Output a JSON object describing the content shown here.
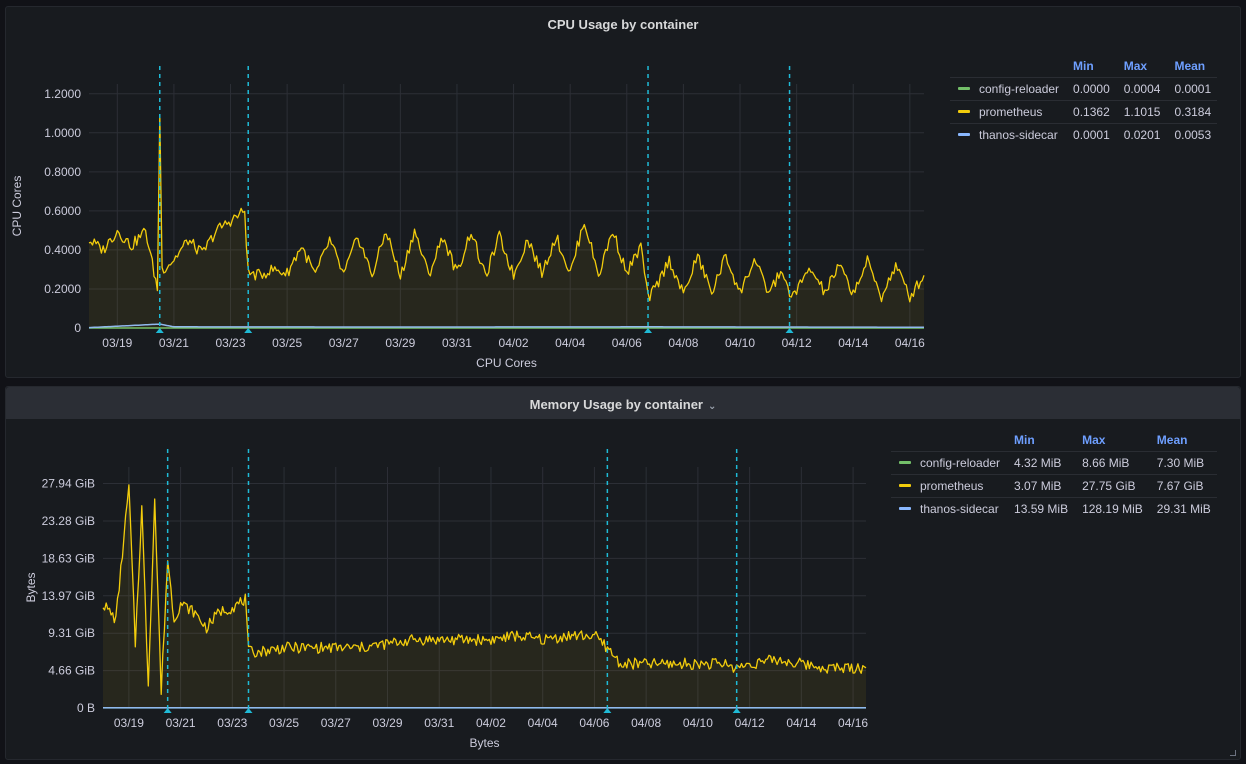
{
  "colors": {
    "config-reloader": "#73bf69",
    "prometheus": "#f2cc0c",
    "thanos-sidecar": "#8ab8ff",
    "annotation": "#1fbad6"
  },
  "cpu": {
    "title": "CPU Usage by container",
    "legend_headers": [
      "Min",
      "Max",
      "Mean"
    ],
    "legend_rows": [
      {
        "name": "config-reloader",
        "min": "0.0000",
        "max": "0.0004",
        "mean": "0.0001"
      },
      {
        "name": "prometheus",
        "min": "0.1362",
        "max": "1.1015",
        "mean": "0.3184"
      },
      {
        "name": "thanos-sidecar",
        "min": "0.0001",
        "max": "0.0201",
        "mean": "0.0053"
      }
    ]
  },
  "memory": {
    "title": "Memory Usage by container",
    "collapse_icon": "chevron-down-icon",
    "legend_headers": [
      "Min",
      "Max",
      "Mean"
    ],
    "legend_rows": [
      {
        "name": "config-reloader",
        "min": "4.32 MiB",
        "max": "8.66 MiB",
        "mean": "7.30 MiB"
      },
      {
        "name": "prometheus",
        "min": "3.07 MiB",
        "max": "27.75 GiB",
        "mean": "7.67 GiB"
      },
      {
        "name": "thanos-sidecar",
        "min": "13.59 MiB",
        "max": "128.19 MiB",
        "mean": "29.31 MiB"
      }
    ]
  },
  "chart_data": [
    {
      "type": "line",
      "title": "CPU Usage by container",
      "xlabel": "CPU Cores",
      "ylabel": "CPU Cores",
      "x_start": "03/18",
      "x_end": "04/16",
      "x_ticks": [
        "03/19",
        "03/21",
        "03/23",
        "03/25",
        "03/27",
        "03/29",
        "03/31",
        "04/02",
        "04/04",
        "04/06",
        "04/08",
        "04/10",
        "04/12",
        "04/14",
        "04/16"
      ],
      "y_ticks": [
        "0",
        "0.2000",
        "0.4000",
        "0.6000",
        "0.8000",
        "1.0000",
        "1.2000"
      ],
      "y_tick_values": [
        0,
        0.2,
        0.4,
        0.6,
        0.8,
        1.0,
        1.2
      ],
      "ylim": [
        0,
        1.25
      ],
      "grid": true,
      "legend": "right",
      "annotations": [
        "03/20 12:00",
        "03/23 15:00",
        "04/06 18:00",
        "04/11 18:00"
      ],
      "series": [
        {
          "name": "prometheus",
          "x": [
            "03/18 00:00",
            "03/18 12:00",
            "03/19 00:00",
            "03/19 12:00",
            "03/20 00:00",
            "03/20 10:00",
            "03/20 12:00",
            "03/20 14:00",
            "03/21 00:00",
            "03/21 12:00",
            "03/22 00:00",
            "03/22 12:00",
            "03/23 00:00",
            "03/23 12:00",
            "03/23 15:00",
            "03/24 00:00",
            "03/24 12:00",
            "03/25 00:00",
            "03/25 12:00",
            "03/26 00:00",
            "03/26 12:00",
            "03/27 00:00",
            "03/27 12:00",
            "03/28 00:00",
            "03/28 12:00",
            "03/29 00:00",
            "03/29 12:00",
            "03/30 00:00",
            "03/30 12:00",
            "03/31 00:00",
            "03/31 12:00",
            "04/01 00:00",
            "04/01 12:00",
            "04/02 00:00",
            "04/02 12:00",
            "04/03 00:00",
            "04/03 12:00",
            "04/04 00:00",
            "04/04 12:00",
            "04/05 00:00",
            "04/05 12:00",
            "04/06 00:00",
            "04/06 12:00",
            "04/06 18:00",
            "04/07 00:00",
            "04/07 12:00",
            "04/08 00:00",
            "04/08 12:00",
            "04/09 00:00",
            "04/09 12:00",
            "04/10 00:00",
            "04/10 12:00",
            "04/11 00:00",
            "04/11 12:00",
            "04/11 18:00",
            "04/12 00:00",
            "04/12 12:00",
            "04/13 00:00",
            "04/13 12:00",
            "04/14 00:00",
            "04/14 12:00",
            "04/15 00:00",
            "04/15 12:00",
            "04/16 00:00",
            "04/16 12:00"
          ],
          "y": [
            0.45,
            0.4,
            0.5,
            0.42,
            0.5,
            0.2,
            1.1,
            0.3,
            0.35,
            0.45,
            0.38,
            0.5,
            0.55,
            0.6,
            0.28,
            0.27,
            0.3,
            0.28,
            0.42,
            0.27,
            0.45,
            0.27,
            0.47,
            0.27,
            0.5,
            0.26,
            0.5,
            0.27,
            0.47,
            0.28,
            0.5,
            0.26,
            0.47,
            0.27,
            0.46,
            0.28,
            0.47,
            0.28,
            0.55,
            0.27,
            0.5,
            0.28,
            0.42,
            0.15,
            0.2,
            0.35,
            0.17,
            0.37,
            0.18,
            0.37,
            0.18,
            0.35,
            0.18,
            0.3,
            0.15,
            0.2,
            0.3,
            0.18,
            0.32,
            0.18,
            0.34,
            0.16,
            0.32,
            0.16,
            0.27
          ]
        },
        {
          "name": "thanos-sidecar",
          "x": [
            "03/18 00:00",
            "03/20 12:00",
            "03/21 00:00",
            "03/29 00:00",
            "04/06 18:00",
            "04/11 18:00",
            "04/16 12:00"
          ],
          "y": [
            0.002,
            0.02,
            0.006,
            0.005,
            0.006,
            0.005,
            0.004
          ]
        },
        {
          "name": "config-reloader",
          "x": [
            "03/18 00:00",
            "04/16 12:00"
          ],
          "y": [
            0.0001,
            0.0001
          ]
        }
      ]
    },
    {
      "type": "line",
      "title": "Memory Usage by container",
      "xlabel": "Bytes",
      "ylabel": "Bytes",
      "x_start": "03/18",
      "x_end": "04/16",
      "x_ticks": [
        "03/19",
        "03/21",
        "03/23",
        "03/25",
        "03/27",
        "03/29",
        "03/31",
        "04/02",
        "04/04",
        "04/06",
        "04/08",
        "04/10",
        "04/12",
        "04/14",
        "04/16"
      ],
      "y_ticks": [
        "0 B",
        "4.66 GiB",
        "9.31 GiB",
        "13.97 GiB",
        "18.63 GiB",
        "23.28 GiB",
        "27.94 GiB"
      ],
      "y_tick_values": [
        0,
        4.66,
        9.31,
        13.97,
        18.63,
        23.28,
        27.94
      ],
      "y_unit": "GiB",
      "ylim": [
        0,
        30
      ],
      "grid": true,
      "legend": "right",
      "annotations": [
        "03/20 12:00",
        "03/23 15:00",
        "04/06 12:00",
        "04/11 12:00"
      ],
      "series": [
        {
          "name": "prometheus",
          "x": [
            "03/18 00:00",
            "03/18 12:00",
            "03/19 00:00",
            "03/19 06:00",
            "03/19 12:00",
            "03/19 18:00",
            "03/20 00:00",
            "03/20 06:00",
            "03/20 12:00",
            "03/20 18:00",
            "03/21 00:00",
            "03/21 12:00",
            "03/22 00:00",
            "03/22 12:00",
            "03/23 00:00",
            "03/23 12:00",
            "03/23 15:00",
            "03/24 00:00",
            "03/25 00:00",
            "03/26 00:00",
            "03/27 00:00",
            "03/28 00:00",
            "03/29 00:00",
            "03/30 00:00",
            "03/31 00:00",
            "04/01 00:00",
            "04/02 00:00",
            "04/03 00:00",
            "04/04 00:00",
            "04/05 00:00",
            "04/06 00:00",
            "04/06 12:00",
            "04/07 00:00",
            "04/08 00:00",
            "04/09 00:00",
            "04/10 00:00",
            "04/11 00:00",
            "04/11 12:00",
            "04/12 00:00",
            "04/13 00:00",
            "04/14 00:00",
            "04/15 00:00",
            "04/16 00:00",
            "04/16 12:00"
          ],
          "y": [
            13,
            11,
            27.5,
            8,
            25,
            3,
            26,
            2,
            18.5,
            11,
            13,
            12,
            10,
            12,
            12.5,
            13.5,
            7,
            7,
            7.5,
            7.5,
            7.5,
            7.5,
            8,
            8.5,
            8.5,
            8.5,
            8.5,
            9,
            8.5,
            9,
            9,
            7.5,
            5.5,
            5.5,
            5.5,
            5.5,
            5.5,
            5,
            5.5,
            6,
            5.5,
            5,
            5,
            5
          ]
        },
        {
          "name": "thanos-sidecar",
          "x": [
            "03/18 00:00",
            "04/16 12:00"
          ],
          "y": [
            0.03,
            0.03
          ]
        },
        {
          "name": "config-reloader",
          "x": [
            "03/18 00:00",
            "04/16 12:00"
          ],
          "y": [
            0.007,
            0.007
          ]
        }
      ]
    }
  ]
}
